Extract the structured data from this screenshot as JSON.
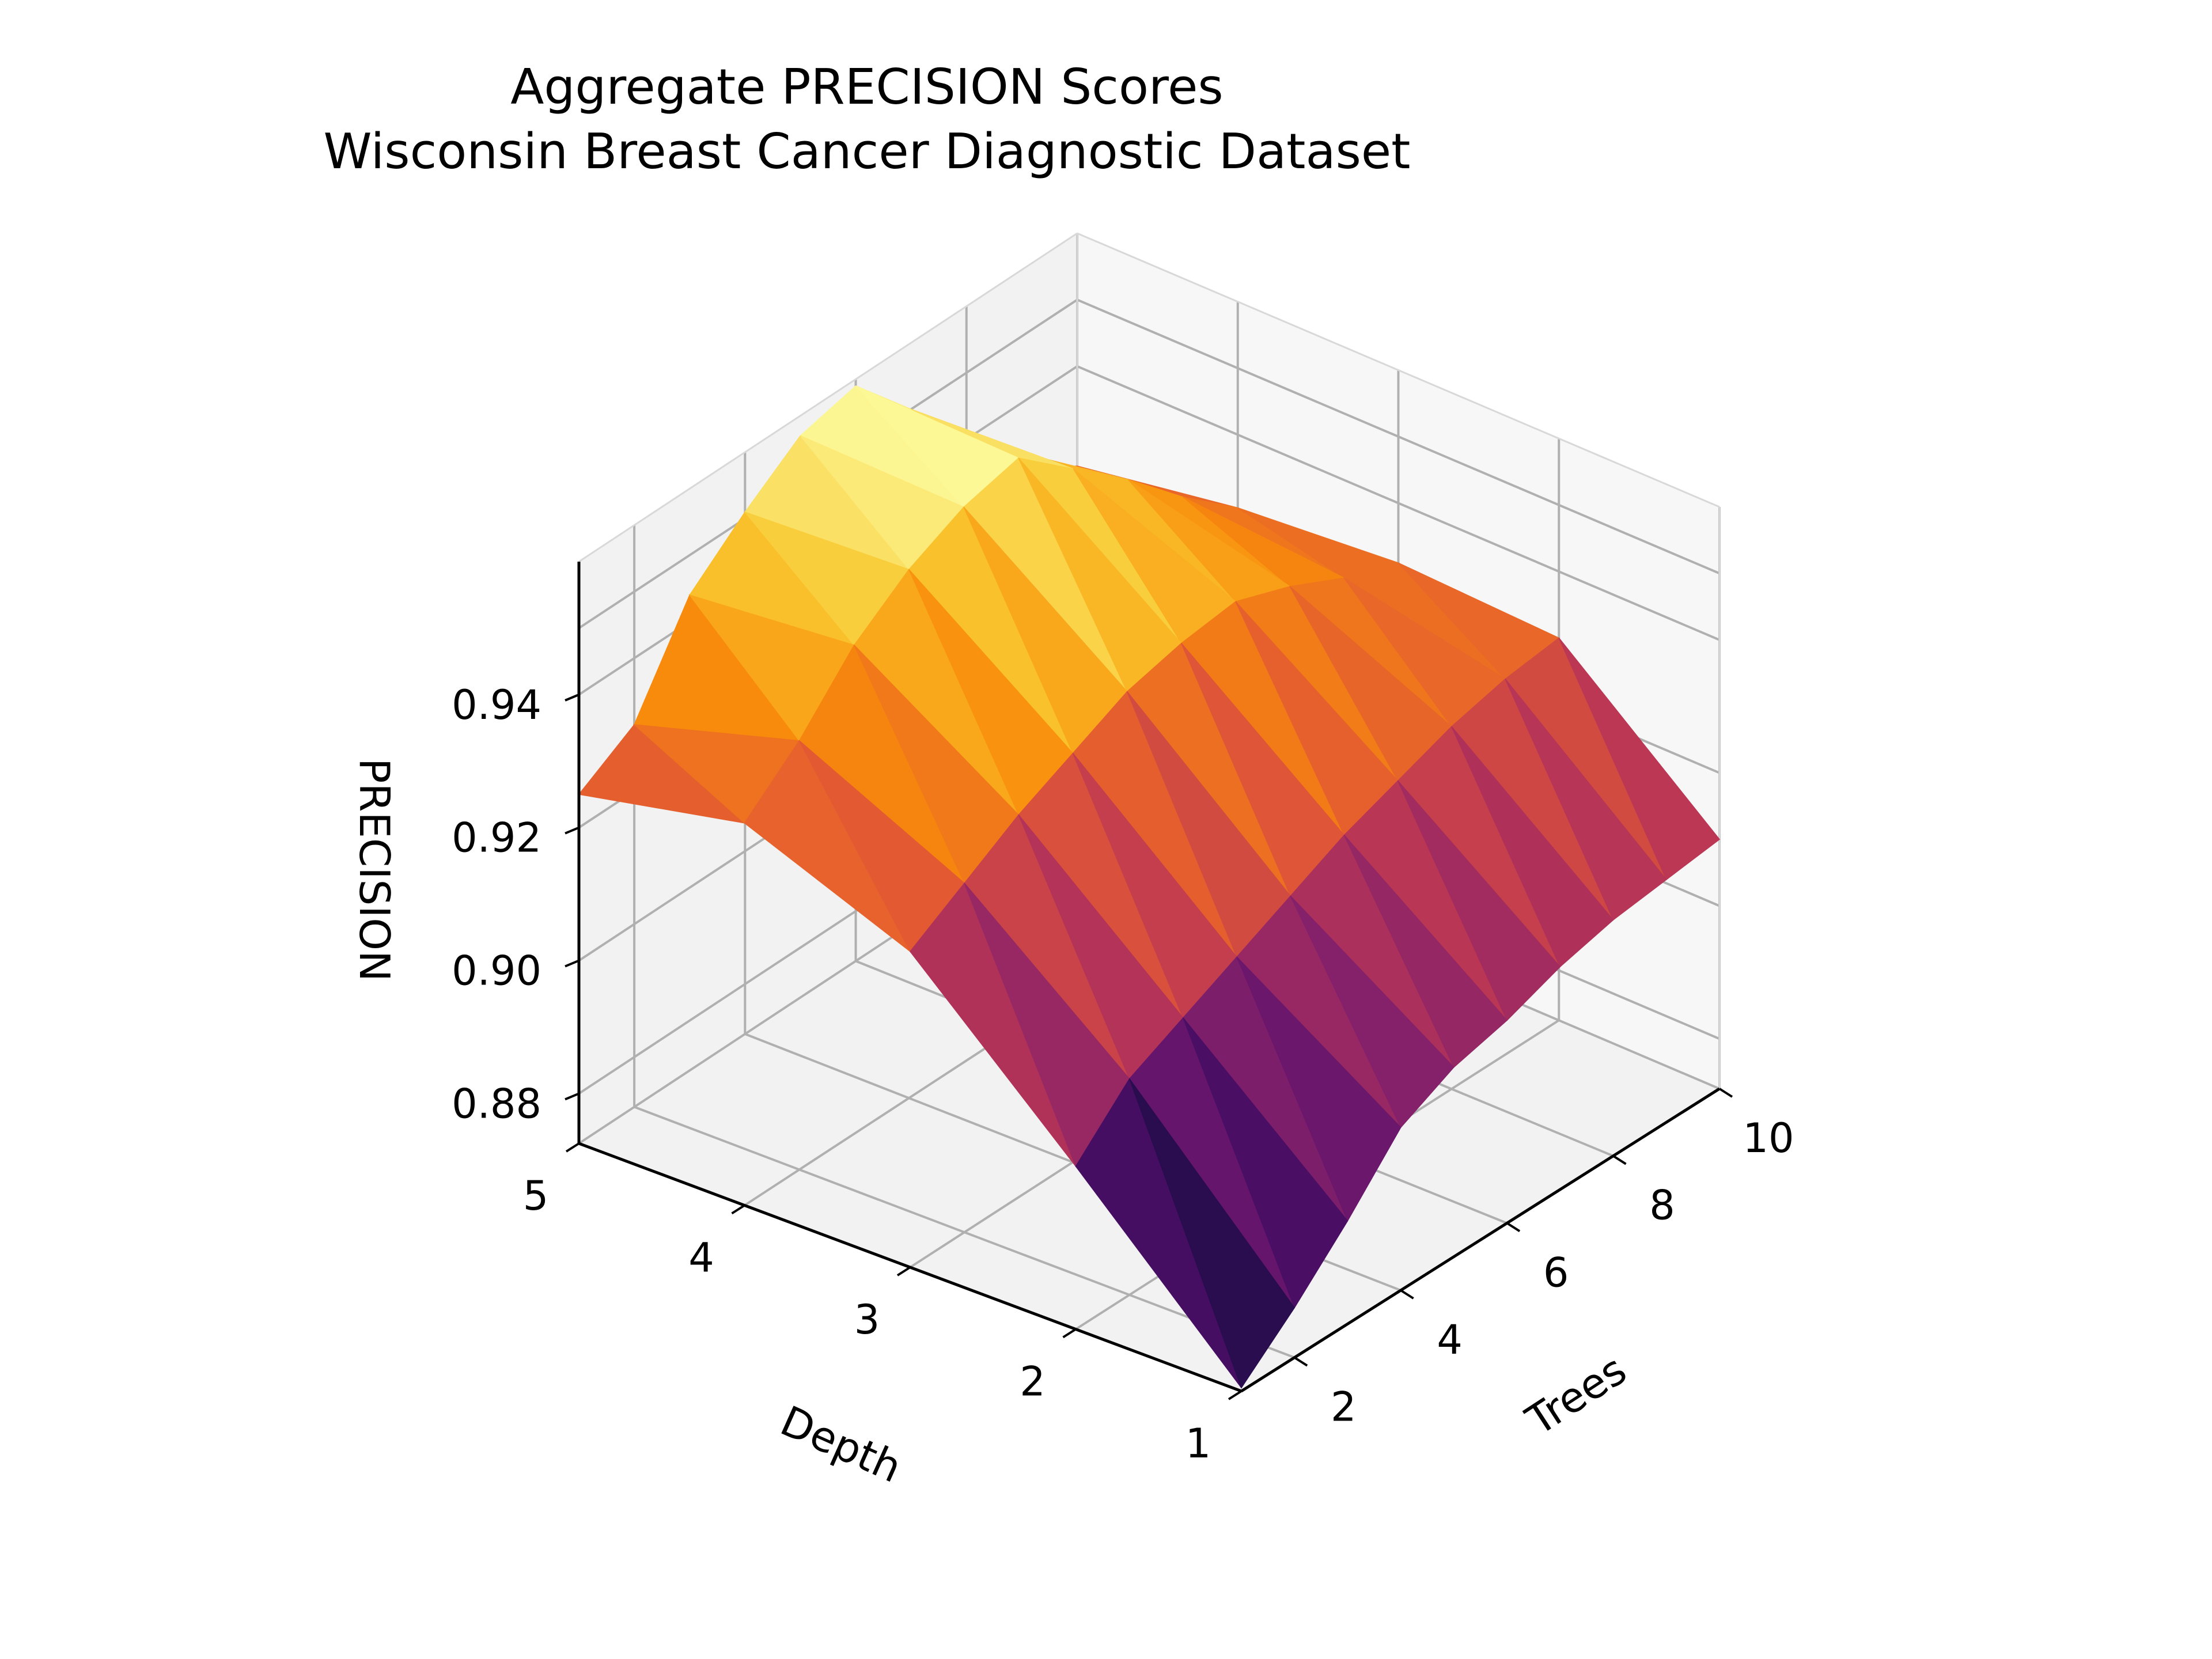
{
  "chart_data": {
    "type": "surface3d",
    "title": "Aggregate PRECISION Scores",
    "subtitle": "Wisconsin Breast Cancer Diagnostic Dataset",
    "xlabel": "Trees",
    "ylabel": "Depth",
    "zlabel": "PRECISION",
    "x_ticks": [
      "2",
      "4",
      "6",
      "8",
      "10"
    ],
    "y_ticks": [
      "1",
      "2",
      "3",
      "4",
      "5"
    ],
    "z_ticks": [
      "0.88",
      "0.90",
      "0.92",
      "0.94"
    ],
    "xlim": [
      1,
      10
    ],
    "ylim": [
      1,
      5
    ],
    "zlim": [
      0.8725,
      0.96
    ],
    "colormap": "inferno",
    "grid": true,
    "trees": [
      1,
      2,
      3,
      4,
      5,
      6,
      7,
      8,
      9,
      10
    ],
    "depths": [
      1,
      2,
      3,
      4,
      5
    ],
    "precision": [
      [
        0.873,
        0.88,
        0.888,
        0.897,
        0.901,
        0.903,
        0.906,
        0.908,
        0.909,
        0.91
      ],
      [
        0.897,
        0.905,
        0.909,
        0.913,
        0.917,
        0.921,
        0.924,
        0.927,
        0.929,
        0.93
      ],
      [
        0.92,
        0.925,
        0.93,
        0.934,
        0.938,
        0.94,
        0.941,
        0.938,
        0.934,
        0.931
      ],
      [
        0.93,
        0.937,
        0.946,
        0.952,
        0.956,
        0.958,
        0.951,
        0.944,
        0.936,
        0.929
      ],
      [
        0.925,
        0.93,
        0.944,
        0.951,
        0.957,
        0.959,
        0.95,
        0.94,
        0.93,
        0.925
      ]
    ]
  }
}
